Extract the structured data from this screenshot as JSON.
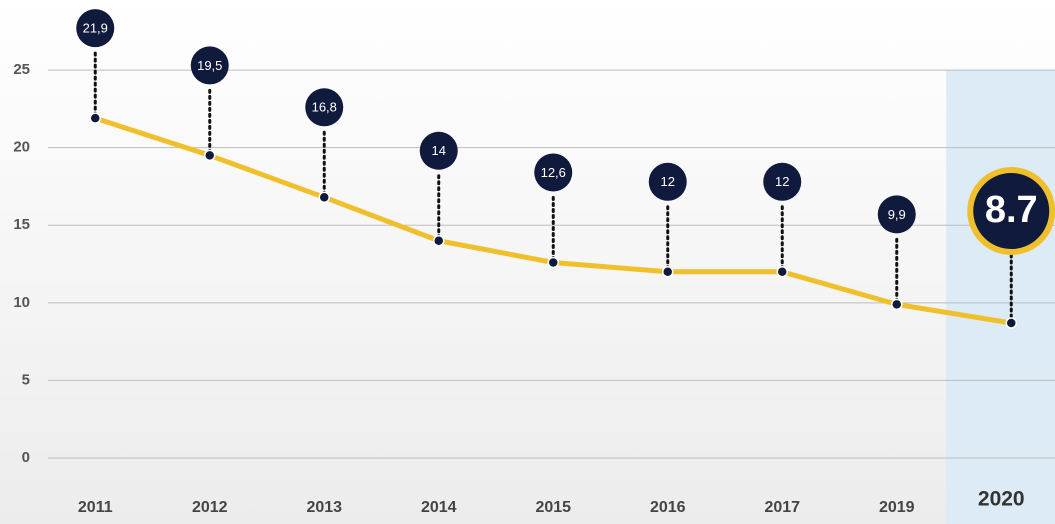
{
  "chart_data": {
    "type": "line",
    "categories": [
      "2011",
      "2012",
      "2013",
      "2014",
      "2015",
      "2016",
      "2017",
      "2019",
      "2020"
    ],
    "values": [
      21.9,
      19.5,
      16.8,
      14,
      12.6,
      12,
      12,
      9.9,
      8.7
    ],
    "value_labels": [
      "21,9",
      "19,5",
      "16,8",
      "14",
      "12,6",
      "12",
      "12",
      "9,9",
      "8.7"
    ],
    "color": "#f0c02c",
    "marker_color": "#0f1a3d",
    "highlight_index": 8,
    "ylim": [
      0,
      29
    ],
    "yticks": [
      0,
      5,
      10,
      15,
      20,
      25
    ],
    "grid": true
  }
}
